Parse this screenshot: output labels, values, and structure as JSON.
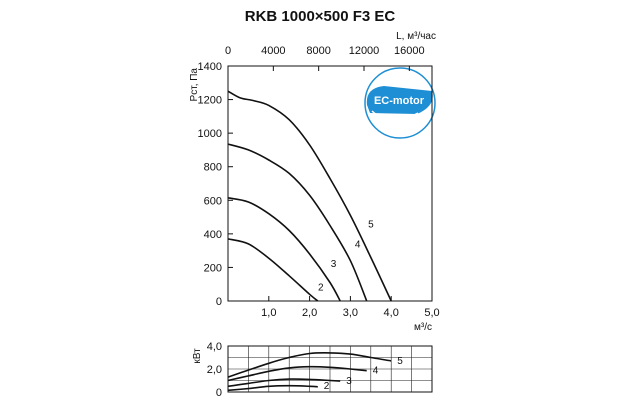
{
  "title": "RKB 1000×500 F3 EC",
  "badge": {
    "text": "EC-motor",
    "icon": "ec-motor-logo-icon",
    "color": "#1e8fd4"
  },
  "chart_data": [
    {
      "type": "line",
      "name": "pressure",
      "xlabel": "м³/с",
      "ylabel": "Рст, Па",
      "top_axis_label": "L, м³/час",
      "xlim": [
        0,
        5
      ],
      "ylim": [
        0,
        1400
      ],
      "x_ticks": [
        1,
        2,
        3,
        4,
        5
      ],
      "x_tick_labels": [
        "1,0",
        "2,0",
        "3,0",
        "4,0",
        "5,0"
      ],
      "y_ticks": [
        0,
        200,
        400,
        600,
        800,
        1000,
        1200,
        1400
      ],
      "y_tick_labels": [
        "0",
        "200",
        "400",
        "600",
        "800",
        "1000",
        "1200",
        "1400"
      ],
      "top_ticks": [
        0,
        4000,
        8000,
        12000,
        16000
      ],
      "top_tick_labels": [
        "0",
        "4000",
        "8000",
        "12000",
        "16000"
      ],
      "top_per_bottom": 3600,
      "grid": false,
      "series": [
        {
          "name": "2",
          "x": [
            0,
            0.5,
            1.0,
            1.5,
            2.0,
            2.2
          ],
          "y": [
            370,
            340,
            255,
            150,
            40,
            0
          ]
        },
        {
          "name": "3",
          "x": [
            0,
            0.5,
            1.0,
            1.5,
            2.0,
            2.5,
            2.75
          ],
          "y": [
            615,
            590,
            520,
            420,
            280,
            110,
            0
          ]
        },
        {
          "name": "4",
          "x": [
            0,
            0.5,
            1.0,
            1.5,
            2.0,
            2.5,
            3.0,
            3.4
          ],
          "y": [
            935,
            900,
            840,
            760,
            630,
            450,
            240,
            0
          ]
        },
        {
          "name": "5",
          "x": [
            0,
            0.3,
            0.6,
            1.0,
            1.5,
            2.0,
            2.5,
            3.0,
            3.5,
            4.0
          ],
          "y": [
            1250,
            1210,
            1195,
            1165,
            1080,
            930,
            730,
            510,
            260,
            0
          ]
        }
      ]
    },
    {
      "type": "line",
      "name": "power",
      "ylabel": "кВт",
      "xlim": [
        0,
        5
      ],
      "ylim": [
        0,
        4
      ],
      "y_ticks": [
        0,
        2,
        4
      ],
      "y_tick_labels": [
        "0",
        "2,0",
        "4,0"
      ],
      "grid": true,
      "series": [
        {
          "name": "2",
          "x": [
            0,
            0.5,
            1.0,
            1.5,
            2.0,
            2.2
          ],
          "y": [
            0.15,
            0.3,
            0.5,
            0.55,
            0.5,
            0.45
          ]
        },
        {
          "name": "3",
          "x": [
            0,
            0.5,
            1.0,
            1.5,
            2.0,
            2.5,
            2.75
          ],
          "y": [
            0.5,
            0.75,
            1.0,
            1.12,
            1.1,
            1.0,
            0.95
          ]
        },
        {
          "name": "4",
          "x": [
            0,
            0.5,
            1.0,
            1.5,
            2.0,
            2.5,
            3.0,
            3.4
          ],
          "y": [
            1.0,
            1.4,
            1.8,
            2.1,
            2.2,
            2.15,
            2.0,
            1.85
          ]
        },
        {
          "name": "5",
          "x": [
            0,
            0.5,
            1.0,
            1.5,
            2.0,
            2.5,
            3.0,
            3.5,
            4.0
          ],
          "y": [
            1.3,
            1.9,
            2.5,
            3.0,
            3.35,
            3.4,
            3.3,
            3.0,
            2.7
          ]
        }
      ]
    }
  ]
}
